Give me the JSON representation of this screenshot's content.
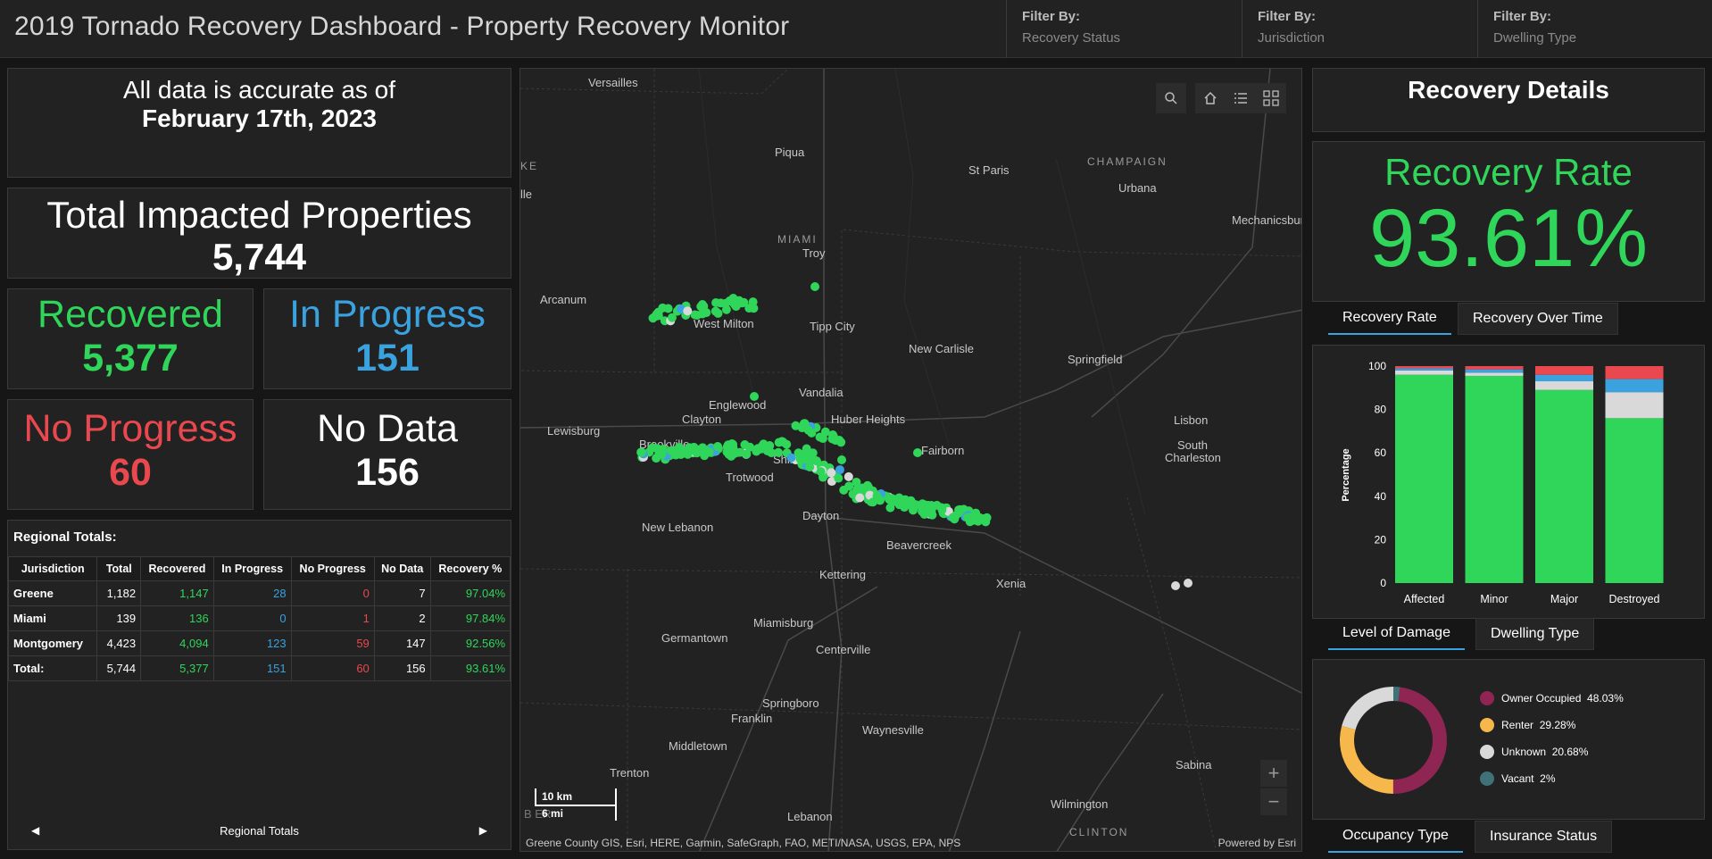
{
  "header": {
    "title": "2019 Tornado Recovery Dashboard - Property Recovery Monitor",
    "filters": [
      {
        "label": "Filter By:",
        "value": "Recovery Status"
      },
      {
        "label": "Filter By:",
        "value": "Jurisdiction"
      },
      {
        "label": "Filter By:",
        "value": "Dwelling Type"
      }
    ]
  },
  "asof": {
    "line1": "All data is accurate as of",
    "date": "February 17th, 2023"
  },
  "total": {
    "label": "Total Impacted Properties",
    "value": "5,744"
  },
  "stats": {
    "recovered": {
      "label": "Recovered",
      "value": "5,377"
    },
    "in_progress": {
      "label": "In Progress",
      "value": "151"
    },
    "no_progress": {
      "label": "No Progress",
      "value": "60"
    },
    "no_data": {
      "label": "No Data",
      "value": "156"
    }
  },
  "regional": {
    "title": "Regional Totals:",
    "columns": [
      "Jurisdiction",
      "Total",
      "Recovered",
      "In Progress",
      "No Progress",
      "No Data",
      "Recovery %"
    ],
    "rows": [
      [
        "Greene",
        "1,182",
        "1,147",
        "28",
        "0",
        "7",
        "97.04%"
      ],
      [
        "Miami",
        "139",
        "136",
        "0",
        "1",
        "2",
        "97.84%"
      ],
      [
        "Montgomery",
        "4,423",
        "4,094",
        "123",
        "59",
        "147",
        "92.56%"
      ],
      [
        "Total:",
        "5,744",
        "5,377",
        "151",
        "60",
        "156",
        "93.61%"
      ]
    ],
    "footer": "Regional Totals"
  },
  "map": {
    "attribution": "Greene County GIS, Esri, HERE, Garmin, SafeGraph, FAO, METI/NASA, USGS, EPA, NPS",
    "powered": "Powered by Esri",
    "scale_km": "10 km",
    "scale_mi": "6 mi",
    "cities": [
      "Versailles",
      "Piqua",
      "St Paris",
      "Urbana",
      "Mechanicsbur",
      "Troy",
      "Arcanum",
      "West Milton",
      "Tipp City",
      "New Carlisle",
      "Springfield",
      "Englewood",
      "Vandalia",
      "Clayton",
      "Huber Heights",
      "Lewisburg",
      "Brookville",
      "Shiloh",
      "Trotwood",
      "Fairborn",
      "Lisbon",
      "South",
      "Charleston",
      "Dayton",
      "Beavercreek",
      "New Lebanon",
      "Kettering",
      "Xenia",
      "Miamisburg",
      "Germantown",
      "Centerville",
      "Springboro",
      "Franklin",
      "Waynesville",
      "Middletown",
      "Sabina",
      "Trenton",
      "Wilmington",
      "Lebanon",
      "lle",
      "B  ER"
    ],
    "regions": [
      "CHAMPAIGN",
      "MIAMI",
      "KE",
      "CLINTON"
    ]
  },
  "details": {
    "title": "Recovery Details",
    "rate_label": "Recovery Rate",
    "rate_value": "93.61%",
    "tabs1": [
      "Recovery Rate",
      "Recovery Over Time"
    ],
    "tabs2": [
      "Level of Damage",
      "Dwelling Type"
    ],
    "tabs3": [
      "Occupancy Type",
      "Insurance Status"
    ]
  },
  "colors": {
    "recovered": "#2fd65a",
    "in_progress": "#3ba2e0",
    "no_progress": "#e8484e",
    "no_data": "#ffffff"
  },
  "chart_data": [
    {
      "type": "bar",
      "stacked": true,
      "categories": [
        "Affected",
        "Minor",
        "Major",
        "Destroyed"
      ],
      "ylabel": "Percentage",
      "ylim": [
        0,
        100
      ],
      "yticks": [
        0,
        20,
        40,
        60,
        80,
        100
      ],
      "series": [
        {
          "color": "#2fd65a",
          "values": [
            96,
            95.5,
            89,
            76
          ]
        },
        {
          "color": "#d9d9d9",
          "values": [
            2,
            1.5,
            4,
            12
          ]
        },
        {
          "color": "#3ba2e0",
          "values": [
            1,
            1.5,
            3,
            6
          ]
        },
        {
          "color": "#e8484e",
          "values": [
            1,
            1.5,
            4,
            6
          ]
        }
      ]
    },
    {
      "type": "pie",
      "donut": true,
      "series": [
        {
          "name": "Owner Occupied",
          "value": 48.03,
          "label": "48.03%",
          "color": "#8e2552"
        },
        {
          "name": "Renter",
          "value": 29.28,
          "label": "29.28%",
          "color": "#f7b84b"
        },
        {
          "name": "Unknown",
          "value": 20.68,
          "label": "20.68%",
          "color": "#d9d9d9"
        },
        {
          "name": "Vacant",
          "value": 2,
          "label": "2%",
          "color": "#3f7177"
        }
      ]
    }
  ]
}
